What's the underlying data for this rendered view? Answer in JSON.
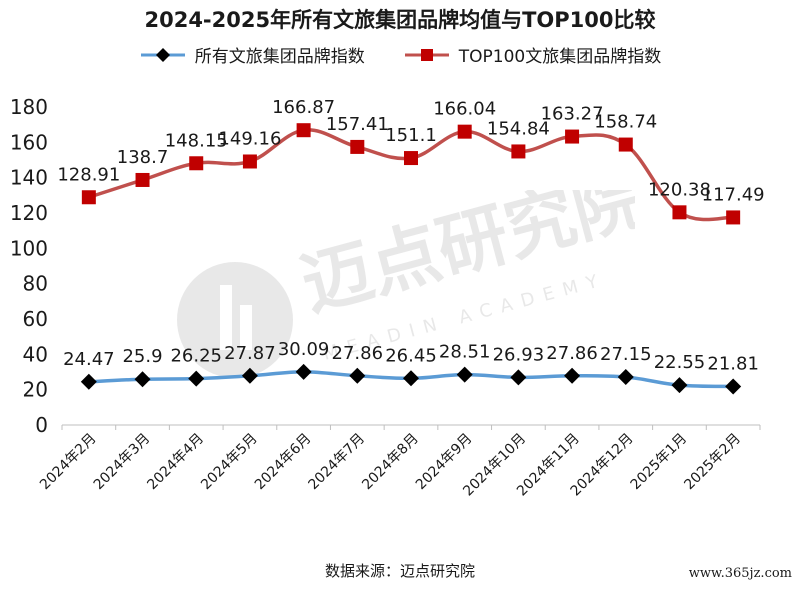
{
  "chart_data": {
    "type": "line",
    "title": "2024-2025年所有文旅集团品牌均值与TOP100比较",
    "categories": [
      "2024年2月",
      "2024年3月",
      "2024年4月",
      "2024年5月",
      "2024年6月",
      "2024年7月",
      "2024年8月",
      "2024年9月",
      "2024年10月",
      "2024年11月",
      "2024年12月",
      "2025年1月",
      "2025年2月"
    ],
    "series": [
      {
        "name": "所有文旅集团品牌指数",
        "values": [
          24.47,
          25.9,
          26.25,
          27.87,
          30.09,
          27.86,
          26.45,
          28.51,
          26.93,
          27.86,
          27.15,
          22.55,
          21.81
        ],
        "labels": [
          "24.47",
          "25.9",
          "26.25",
          "27.87",
          "30.09",
          "27.86",
          "26.45",
          "28.51",
          "26.93",
          "27.86",
          "27.15",
          "22.55",
          "21.81"
        ],
        "color": "#5b9bd5",
        "marker": "diamond",
        "marker_color": "#000000"
      },
      {
        "name": "TOP100文旅集团品牌指数",
        "values": [
          128.91,
          138.7,
          148.15,
          149.16,
          166.87,
          157.41,
          151.1,
          166.04,
          154.84,
          163.27,
          158.74,
          120.38,
          117.49
        ],
        "labels": [
          "128.91",
          "138.7",
          "148.15",
          "149.16",
          "166.87",
          "157.41",
          "151.1",
          "166.04",
          "154.84",
          "163.27",
          "158.74",
          "120.38",
          "117.49"
        ],
        "color": "#c0504d",
        "marker": "square",
        "marker_color": "#c00000"
      }
    ],
    "yticks": [
      "0",
      "20",
      "40",
      "60",
      "80",
      "100",
      "120",
      "140",
      "160",
      "180"
    ],
    "ylim": [
      0,
      180
    ],
    "grid": false,
    "legend_position": "top"
  },
  "source": "数据来源：迈点研究院",
  "watermark": {
    "name": "迈点研究院",
    "sub": "MEADIN ACADEMY"
  },
  "site": "www.365jz.com"
}
